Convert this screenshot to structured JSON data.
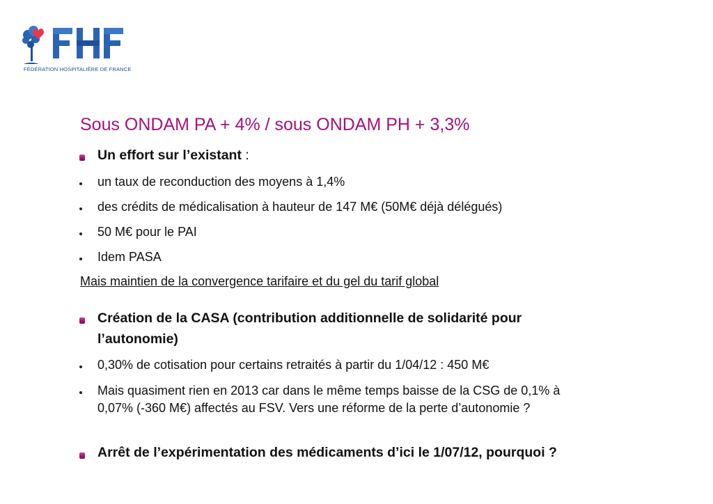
{
  "logo": {
    "letters": "FHF",
    "caption": "FÉDÉRATION HOSPITALIÈRE DE FRANCE"
  },
  "title": "Sous ONDAM PA + 4% / sous ONDAM PH + 3,3%",
  "section1": {
    "heading": "Un effort sur l’existant",
    "heading_suffix": " :",
    "bullets": [
      "un taux de reconduction des moyens à 1,4%",
      "des crédits de médicalisation à hauteur de 147 M€ (50M€ déjà délégués)",
      "50 M€ pour le PAI",
      "Idem PASA"
    ],
    "note": "Mais maintien de la convergence tarifaire et du gel du tarif global"
  },
  "section2": {
    "heading_lines": [
      "Création de la CASA (contribution additionnelle de solidarité pour",
      "l’autonomie)"
    ],
    "bullets": [
      {
        "lines": [
          "0,30% de cotisation pour certains retraités à partir du 1/04/12 : 450 M€"
        ]
      },
      {
        "lines": [
          "Mais quasiment rien en 2013 car dans le même temps baisse de la CSG de 0,1% à",
          "0,07% (-360 M€) affectés au FSV. Vers une réforme de la perte d’autonomie ?"
        ]
      }
    ]
  },
  "section3": {
    "heading": "Arrêt de l’expérimentation des médicaments d’ici le 1/07/12, pourquoi ?"
  },
  "colors": {
    "accent": "#a5127a",
    "logo_blue": "#2b63b4",
    "logo_heart": "#e53a4e",
    "text": "#111111"
  }
}
